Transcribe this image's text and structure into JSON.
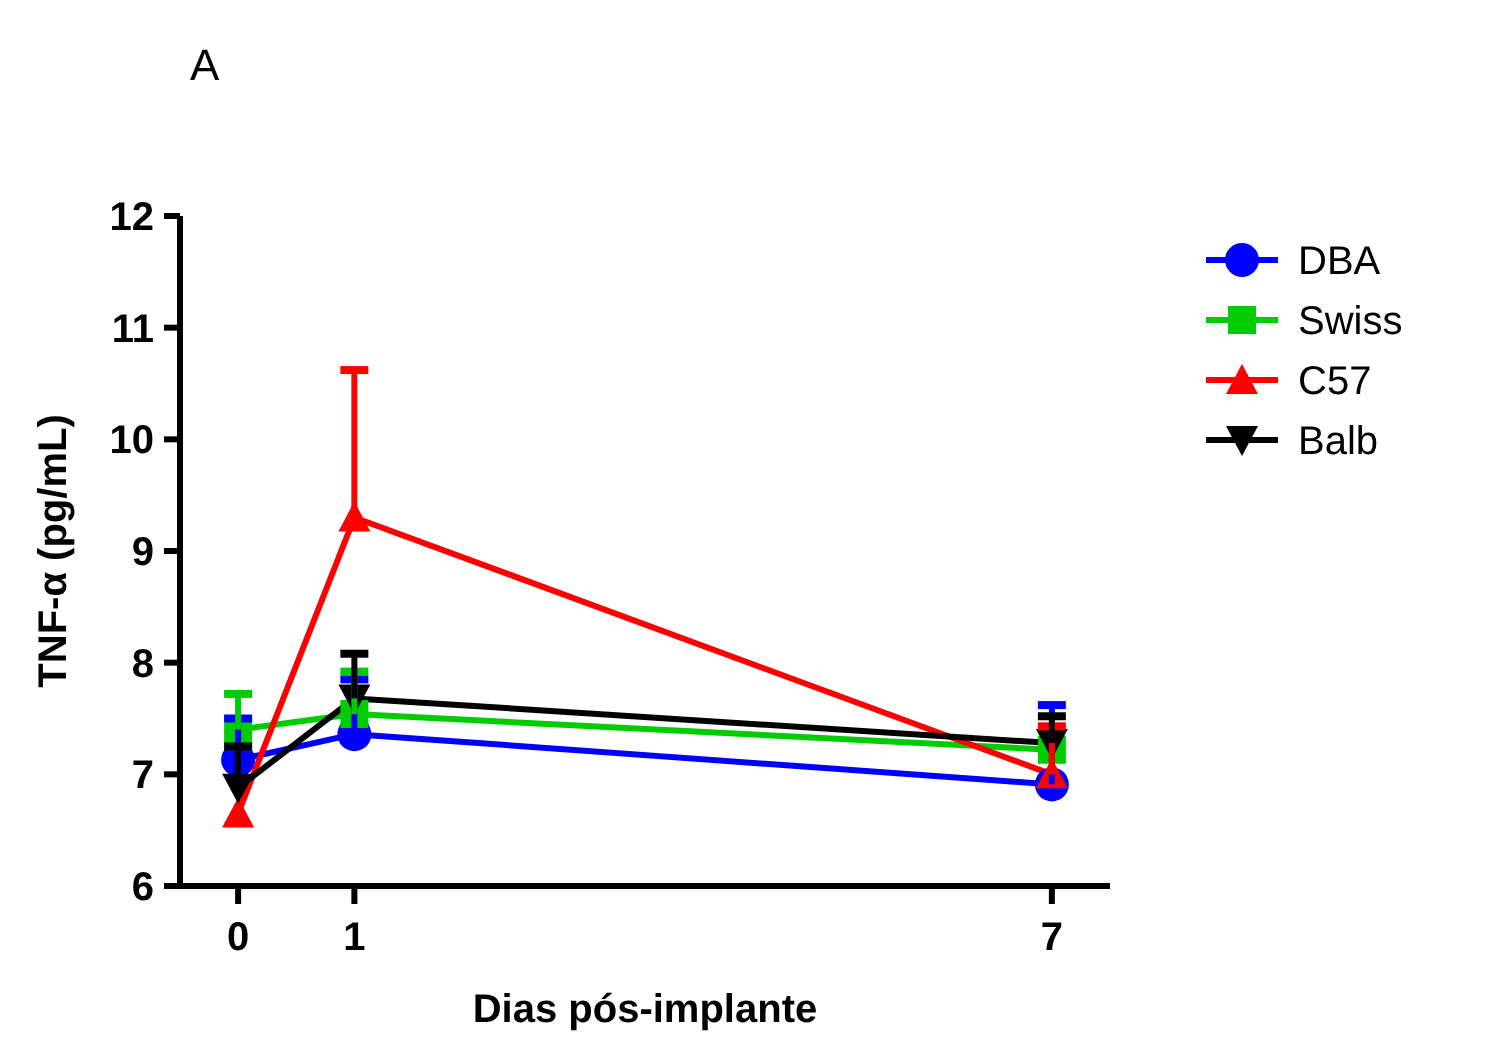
{
  "chart_data": {
    "type": "line",
    "annotations": [
      "A"
    ],
    "xlabel": "Dias pós-implante",
    "ylabel": "TNF-α (pg/mL)",
    "x": [
      0,
      1,
      7
    ],
    "xlim": [
      -0.5,
      7.5
    ],
    "xticks": [
      0,
      1,
      7
    ],
    "ylim": [
      6,
      12
    ],
    "yticks": [
      6,
      7,
      8,
      9,
      10,
      11,
      12
    ],
    "grid": false,
    "legend": "right",
    "series": [
      {
        "name": "DBA",
        "color": "#0000ff",
        "marker": "circle",
        "values": [
          7.13,
          7.36,
          6.91
        ],
        "errors": [
          [
            7.13,
            7.5
          ],
          [
            7.36,
            7.85
          ],
          [
            6.91,
            7.62
          ]
        ]
      },
      {
        "name": "Swiss",
        "color": "#00cc00",
        "marker": "square",
        "values": [
          7.4,
          7.54,
          7.22
        ],
        "errors": [
          [
            7.4,
            7.72
          ],
          [
            7.54,
            7.92
          ],
          null
        ]
      },
      {
        "name": "C57",
        "color": "#ff0000",
        "marker": "triangle",
        "values": [
          6.65,
          9.3,
          7.0
        ],
        "errors": [
          null,
          [
            9.3,
            10.62
          ],
          [
            7.0,
            7.43
          ]
        ]
      },
      {
        "name": "Balb",
        "color": "#000000",
        "marker": "triangle-down",
        "values": [
          6.88,
          7.68,
          7.28
        ],
        "errors": [
          [
            6.88,
            7.25
          ],
          [
            7.68,
            8.08
          ],
          [
            7.28,
            7.52
          ]
        ]
      }
    ]
  }
}
